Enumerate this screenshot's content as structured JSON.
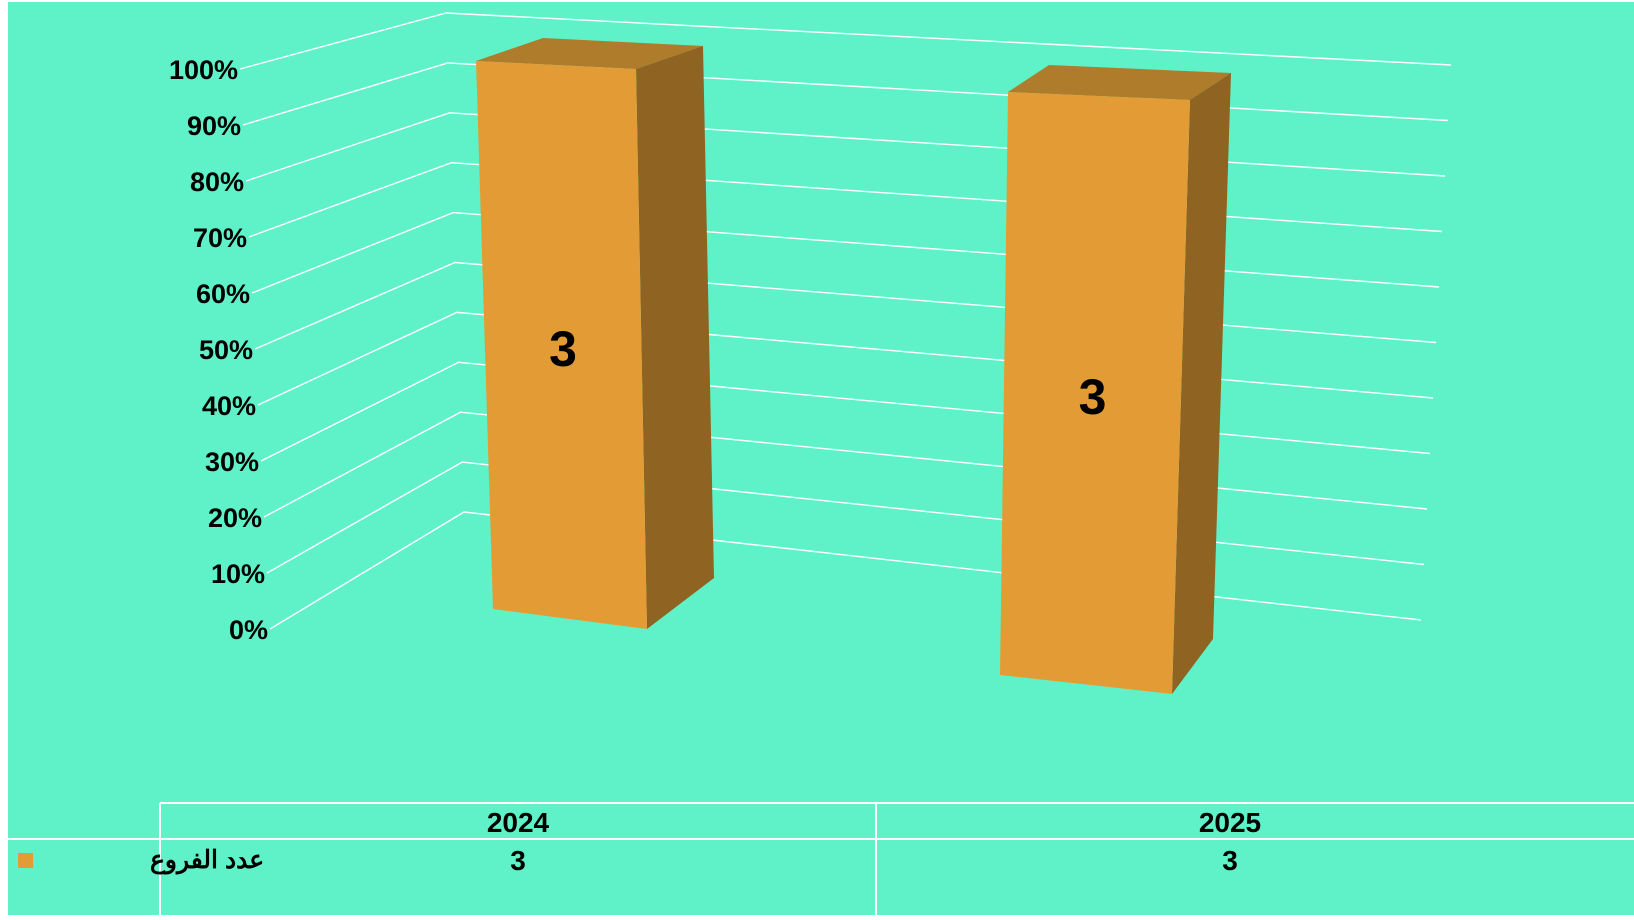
{
  "colors": {
    "background": "#5ff2c8",
    "bar_front": "#e39c35",
    "bar_side": "#8f6422",
    "bar_top": "#ae7c2b",
    "grid": "#ffffff",
    "text": "#000000"
  },
  "chart_data": {
    "type": "bar",
    "style": "3d-column",
    "categories": [
      "2024",
      "2025"
    ],
    "series": [
      {
        "name": "عدد الفروع",
        "values": [
          3,
          3
        ]
      }
    ],
    "value_axis": {
      "ticks": [
        "0%",
        "10%",
        "20%",
        "30%",
        "40%",
        "50%",
        "60%",
        "70%",
        "80%",
        "90%",
        "100%"
      ],
      "range": [
        0,
        100
      ]
    },
    "data_labels": [
      "3",
      "3"
    ],
    "grid": true,
    "legend": "data-table",
    "data_table": {
      "header": [
        "2024",
        "2025"
      ],
      "rows": [
        {
          "label": "عدد الفروع",
          "values": [
            "3",
            "3"
          ]
        }
      ]
    }
  }
}
